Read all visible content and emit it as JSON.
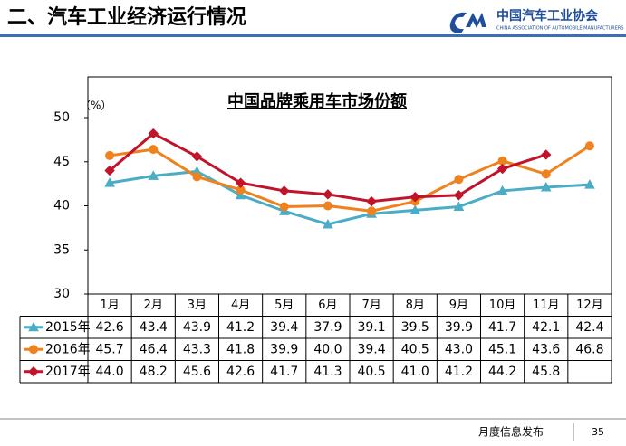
{
  "header": {
    "title": "二、汽车工业经济运行情况",
    "logo_text": "中国汽车工业协会",
    "logo_subtitle": "CHINA ASSOCIATION OF AUTOMOBILE MANUFACTURERS"
  },
  "footer": {
    "text": "月度信息发布",
    "page": "35"
  },
  "chart_data": {
    "type": "line",
    "title": "中国品牌乘用车市场份额",
    "y_label": "（%）",
    "categories": [
      "1月",
      "2月",
      "3月",
      "4月",
      "5月",
      "6月",
      "7月",
      "8月",
      "9月",
      "10月",
      "11月",
      "12月"
    ],
    "ylim": [
      30,
      50
    ],
    "yticks": [
      30,
      35,
      40,
      45,
      50
    ],
    "grid": false,
    "series": [
      {
        "name": "2015年",
        "color": "#4bacc6",
        "marker": "triangle",
        "values": [
          42.6,
          43.4,
          43.9,
          41.2,
          39.4,
          37.9,
          39.1,
          39.5,
          39.9,
          41.7,
          42.1,
          42.4
        ],
        "value_labels": [
          "42.6",
          "43.4",
          "43.9",
          "41.2",
          "39.4",
          "37.9",
          "39.1",
          "39.5",
          "39.9",
          "41.7",
          "42.1",
          "42.4"
        ]
      },
      {
        "name": "2016年",
        "color": "#f0821e",
        "marker": "circle",
        "values": [
          45.7,
          46.4,
          43.3,
          41.8,
          39.9,
          40.0,
          39.4,
          40.5,
          43.0,
          45.1,
          43.6,
          46.8
        ],
        "value_labels": [
          "45.7",
          "46.4",
          "43.3",
          "41.8",
          "39.9",
          "40.0",
          "39.4",
          "40.5",
          "43.0",
          "45.1",
          "43.6",
          "46.8"
        ]
      },
      {
        "name": "2017年",
        "color": "#c0142a",
        "marker": "diamond",
        "values": [
          44.0,
          48.2,
          45.6,
          42.6,
          41.7,
          41.3,
          40.5,
          41.0,
          41.2,
          44.2,
          45.8,
          null
        ],
        "value_labels": [
          "44.0",
          "48.2",
          "45.6",
          "42.6",
          "41.7",
          "41.3",
          "40.5",
          "41.0",
          "41.2",
          "44.2",
          "45.8",
          null
        ]
      }
    ]
  }
}
